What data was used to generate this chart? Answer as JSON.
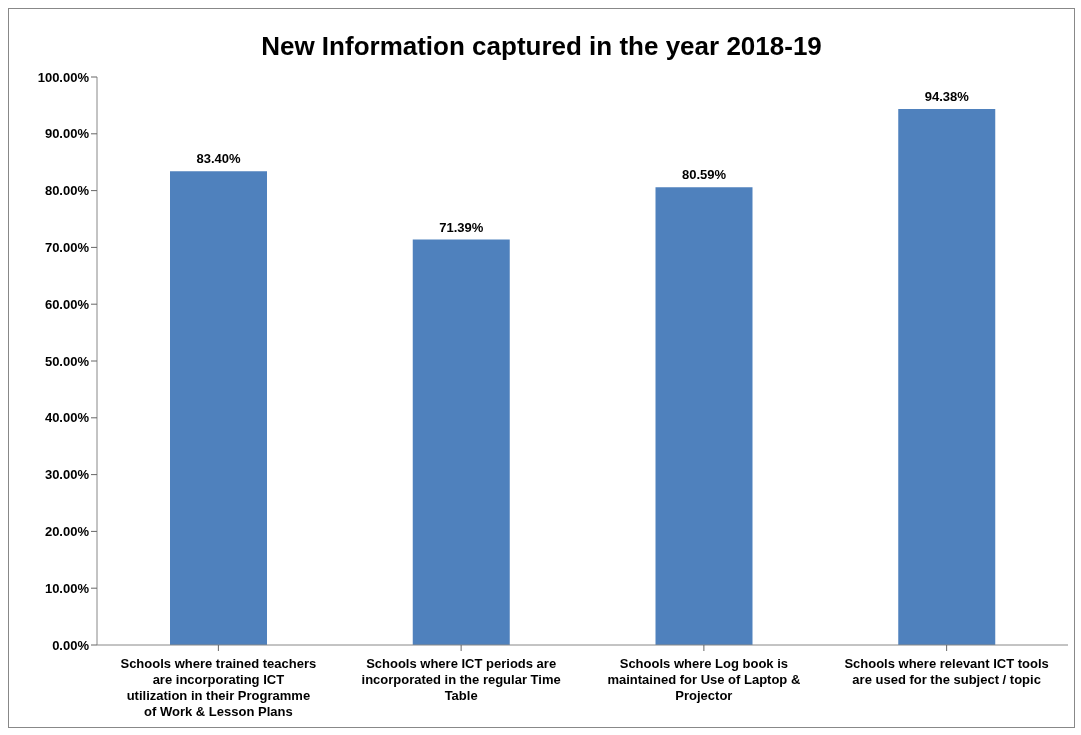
{
  "chart_data": {
    "type": "bar",
    "title": "New Information captured in the year 2018-19",
    "categories": [
      "Schools where trained teachers are incorporating ICT utilization in their Programme of Work & Lesson Plans",
      "Schools where ICT periods are incorporated in the regular Time Table",
      "Schools where Log book is maintained for Use of Laptop & Projector",
      "Schools where relevant ICT tools are used for the subject / topic"
    ],
    "values": [
      83.4,
      71.39,
      80.59,
      94.38
    ],
    "value_labels": [
      "83.40%",
      "71.39%",
      "80.59%",
      "94.38%"
    ],
    "color": "#4f81bd",
    "ylim": [
      0,
      100
    ],
    "yticks": [
      {
        "value": 0,
        "label": "0.00%"
      },
      {
        "value": 10,
        "label": "10.00%"
      },
      {
        "value": 20,
        "label": "20.00%"
      },
      {
        "value": 30,
        "label": "30.00%"
      },
      {
        "value": 40,
        "label": "40.00%"
      },
      {
        "value": 50,
        "label": "50.00%"
      },
      {
        "value": 60,
        "label": "60.00%"
      },
      {
        "value": 70,
        "label": "70.00%"
      },
      {
        "value": 80,
        "label": "80.00%"
      },
      {
        "value": 90,
        "label": "90.00%"
      },
      {
        "value": 100,
        "label": "100.00%"
      }
    ],
    "grid": false,
    "legend": false
  }
}
